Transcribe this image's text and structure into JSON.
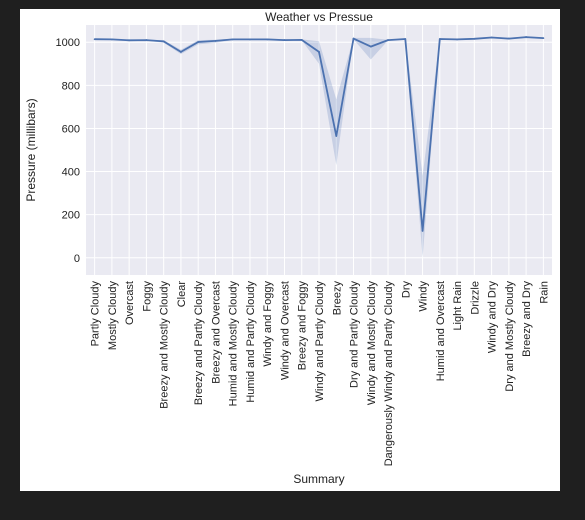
{
  "chart_data": {
    "type": "line",
    "title": "Weather vs Pressue",
    "xlabel": "Summary",
    "ylabel": "Pressure (millibars)",
    "ylim": [
      -80,
      1080
    ],
    "yticks": [
      0,
      200,
      400,
      600,
      800,
      1000
    ],
    "grid": true,
    "categories": [
      "Partly Cloudy",
      "Mostly Cloudy",
      "Overcast",
      "Foggy",
      "Breezy and Mostly Cloudy",
      "Clear",
      "Breezy and Partly Cloudy",
      "Breezy and Overcast",
      "Humid and Mostly Cloudy",
      "Humid and Partly Cloudy",
      "Windy and Foggy",
      "Windy and Overcast",
      "Breezy and Foggy",
      "Windy and Partly Cloudy",
      "Breezy",
      "Dry and Partly Cloudy",
      "Windy and Mostly Cloudy",
      "Dangerously Windy and Partly Cloudy",
      "Dry",
      "Windy",
      "Humid and Overcast",
      "Light Rain",
      "Drizzle",
      "Windy and Dry",
      "Dry and Mostly Cloudy",
      "Breezy and Dry",
      "Rain"
    ],
    "series": [
      {
        "values": [
          1014,
          1013,
          1009,
          1010,
          1004,
          955,
          1001,
          1006,
          1013,
          1013,
          1013,
          1010,
          1011,
          955,
          565,
          1017,
          980,
          1010,
          1015,
          125,
          1015,
          1013,
          1016,
          1022,
          1017,
          1024,
          1019
        ],
        "ci_low": [
          1012,
          1011,
          1007,
          1008,
          998,
          945,
          990,
          998,
          1010,
          1010,
          1009,
          1006,
          1009,
          900,
          430,
          1014,
          920,
          1008,
          1012,
          0,
          1012,
          1010,
          1013,
          1019,
          1014,
          1021,
          1016
        ],
        "ci_high": [
          1016,
          1015,
          1011,
          1012,
          1010,
          965,
          1010,
          1012,
          1016,
          1016,
          1017,
          1014,
          1013,
          1005,
          735,
          1020,
          1020,
          1012,
          1018,
          380,
          1018,
          1016,
          1019,
          1025,
          1020,
          1027,
          1022
        ]
      }
    ]
  },
  "colors": {
    "line": "#4c72b0",
    "band": "#4c72b0",
    "plot_background": "#eaeaf2",
    "grid": "#ffffff",
    "text": "#222222"
  }
}
